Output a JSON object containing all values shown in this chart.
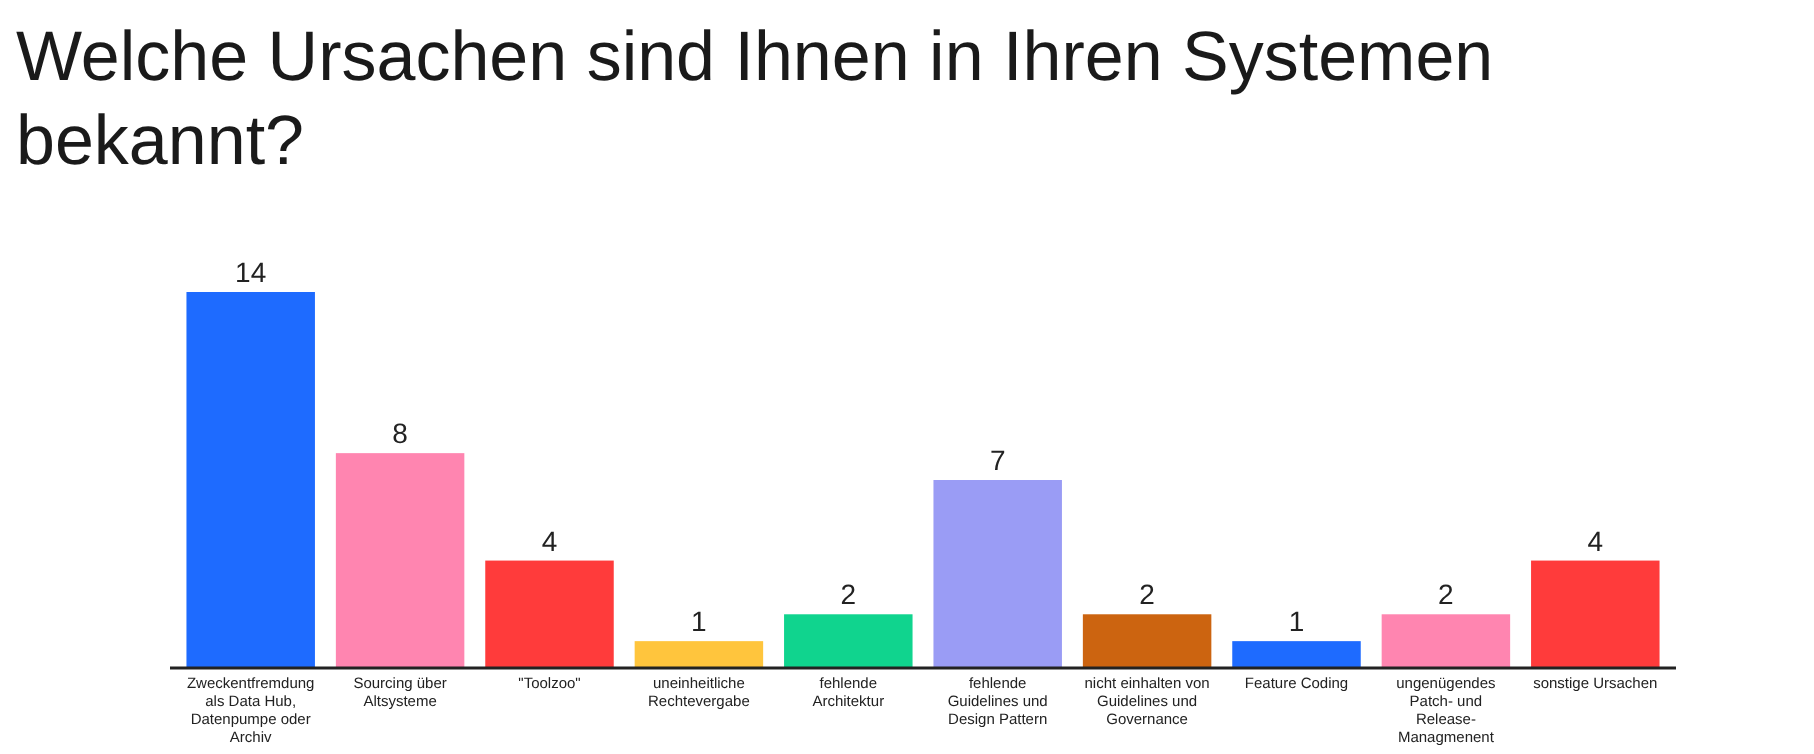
{
  "chart_data": {
    "type": "bar",
    "title": "Welche Ursachen sind Ihnen in Ihren Systemen bekannt?",
    "categories": [
      "Zweckentfremdung als Data Hub, Datenpumpe oder Archiv",
      "Sourcing über Altsysteme",
      "\"Toolzoo\"",
      "uneinheitliche Rechtevergabe",
      "fehlende Architektur",
      "fehlende Guidelines und Design Pattern",
      "nicht einhalten von Guidelines und Governance",
      "Feature Coding",
      "ungenügendes Patch- und Release-Managmenent",
      "sonstige Ursachen"
    ],
    "values": [
      14,
      8,
      4,
      1,
      2,
      7,
      2,
      1,
      2,
      4
    ],
    "colors": [
      "#1e6bff",
      "#ff85b0",
      "#ff3b3b",
      "#ffc53d",
      "#10d48e",
      "#9a9cf5",
      "#cc6410",
      "#1e6bff",
      "#ff85b0",
      "#ff3b3b"
    ],
    "data_labels": true
  }
}
